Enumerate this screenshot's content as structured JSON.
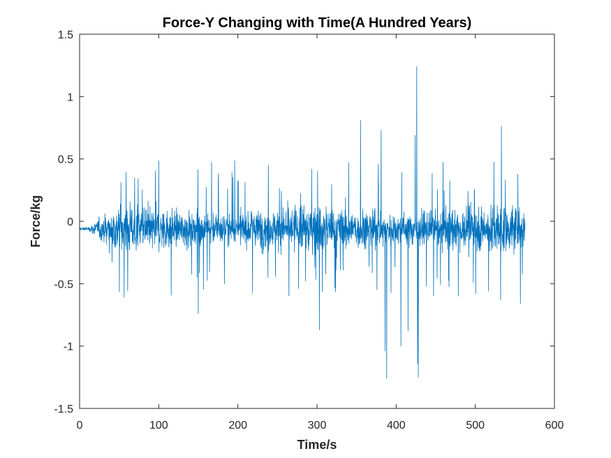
{
  "chart_data": {
    "type": "line",
    "title": "Force-Y Changing with Time(A Hundred Years)",
    "xlabel": "Time/s",
    "ylabel": "Force/kg",
    "xlim": [
      0,
      600
    ],
    "ylim": [
      -1.5,
      1.5
    ],
    "xticks": [
      0,
      100,
      200,
      300,
      400,
      500,
      600
    ],
    "xtick_labels": [
      "0",
      "100",
      "200",
      "300",
      "400",
      "500",
      "600"
    ],
    "yticks": [
      -1.5,
      -1,
      -0.5,
      0,
      0.5,
      1,
      1.5
    ],
    "ytick_labels": [
      "-1.5",
      "-1",
      "-0.5",
      "0",
      "0.5",
      "1",
      "1.5"
    ],
    "grid": false,
    "line_color": "#0072BD",
    "series": [
      {
        "x_range": [
          0,
          563
        ],
        "baseline": -0.06,
        "peaks": [
          {
            "x": 355,
            "y": 0.81
          },
          {
            "x": 381,
            "y": 0.73
          },
          {
            "x": 386,
            "y": -1.04
          },
          {
            "x": 388,
            "y": -1.26
          },
          {
            "x": 406,
            "y": -1.0
          },
          {
            "x": 415,
            "y": -0.88
          },
          {
            "x": 424,
            "y": 0.69
          },
          {
            "x": 426,
            "y": 1.24
          },
          {
            "x": 427,
            "y": -1.14
          },
          {
            "x": 428,
            "y": -1.25
          },
          {
            "x": 303,
            "y": -0.87
          },
          {
            "x": 150,
            "y": -0.74
          },
          {
            "x": 533,
            "y": 0.76
          },
          {
            "x": 532,
            "y": -0.63
          },
          {
            "x": 557,
            "y": -0.66
          }
        ]
      }
    ]
  }
}
